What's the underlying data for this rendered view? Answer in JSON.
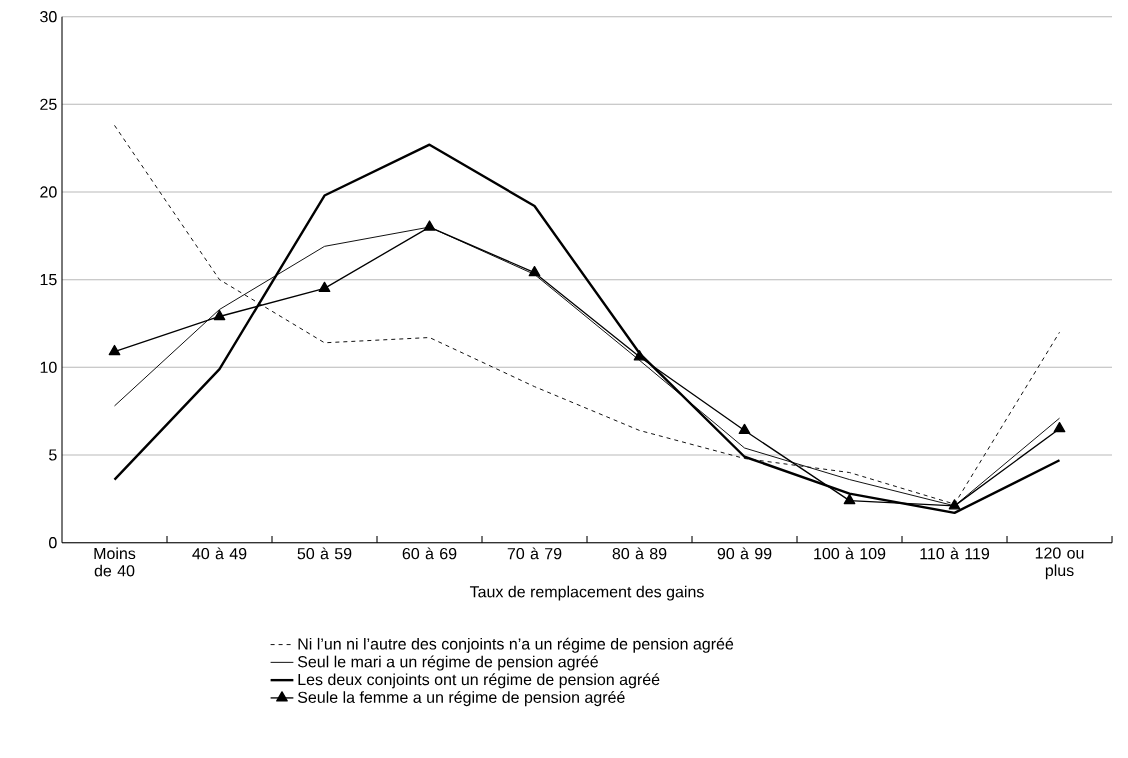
{
  "chart_data": {
    "type": "line",
    "xlabel": "Taux de remplacement des gains",
    "categories": [
      "Moins de 40",
      "40 à 49",
      "50 à 59",
      "60 à 69",
      "70 à 79",
      "80 à 89",
      "90 à 99",
      "100 à 109",
      "110 à 119",
      "120 ou plus"
    ],
    "series": [
      {
        "name": "Ni l’un ni l’autre des conjoints n’a un régime de pension agréé",
        "color": "#000000",
        "line_style": "dashed",
        "marker": "none",
        "values": [
          23.8,
          15.0,
          11.4,
          11.7,
          8.9,
          6.4,
          4.8,
          4.0,
          2.2,
          12.0
        ]
      },
      {
        "name": "Seul le mari a un régime de pension agréé",
        "color": "#000000",
        "line_style": "solid",
        "marker": "none",
        "values": [
          7.8,
          13.3,
          16.9,
          18.0,
          15.3,
          10.4,
          5.4,
          3.6,
          2.1,
          7.1
        ]
      },
      {
        "name": "Les deux conjoints ont un régime de pension agréé",
        "color": "#000000",
        "line_style": "solid",
        "marker": "none",
        "values": [
          3.6,
          9.9,
          19.8,
          22.7,
          19.2,
          10.8,
          4.9,
          2.8,
          1.7,
          4.7
        ]
      },
      {
        "name": "Seule la femme a un régime de pension agréé",
        "color": "#000000",
        "line_style": "solid",
        "marker": "triangle",
        "values": [
          10.9,
          12.9,
          14.5,
          18.0,
          15.4,
          10.6,
          6.4,
          2.4,
          2.1,
          6.5
        ]
      }
    ],
    "ylim": [
      0,
      30
    ],
    "yticks": [
      0,
      5,
      10,
      15,
      20,
      25,
      30
    ],
    "grid": "y",
    "legend": "bottom"
  }
}
